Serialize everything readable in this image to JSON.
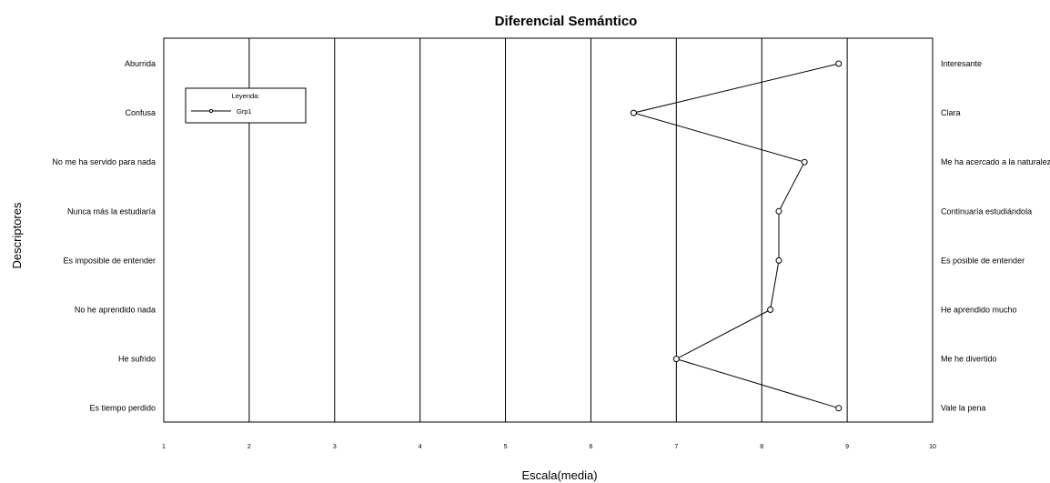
{
  "chart_data": {
    "type": "line",
    "title": "Diferencial Semántico",
    "xlabel": "Escala(media)",
    "ylabel": "Descriptores",
    "xlim": [
      1,
      10
    ],
    "x_ticks": [
      "1",
      "2",
      "3",
      "4",
      "5",
      "6",
      "7",
      "8",
      "9",
      "10"
    ],
    "grid": "vertical",
    "legend": {
      "title": "Leyenda:",
      "position": "top-left"
    },
    "left_labels": [
      "Aburrida",
      "Confusa",
      "No me ha servido para nada",
      "Nunca más la estudiaría",
      "Es imposible de entender",
      "No he aprendido nada",
      "He sufrido",
      "Es tiempo perdido"
    ],
    "right_labels": [
      "Interesante",
      "Clara",
      "Me ha acercado a la naturaleza",
      "Continuaría estudiándola",
      "Es posible de entender",
      "He aprendido mucho",
      "Me he divertido",
      "Vale la pena"
    ],
    "series": [
      {
        "name": "Grp1",
        "values": [
          8.9,
          6.5,
          8.5,
          8.2,
          8.2,
          8.1,
          7.0,
          8.9
        ]
      }
    ]
  }
}
